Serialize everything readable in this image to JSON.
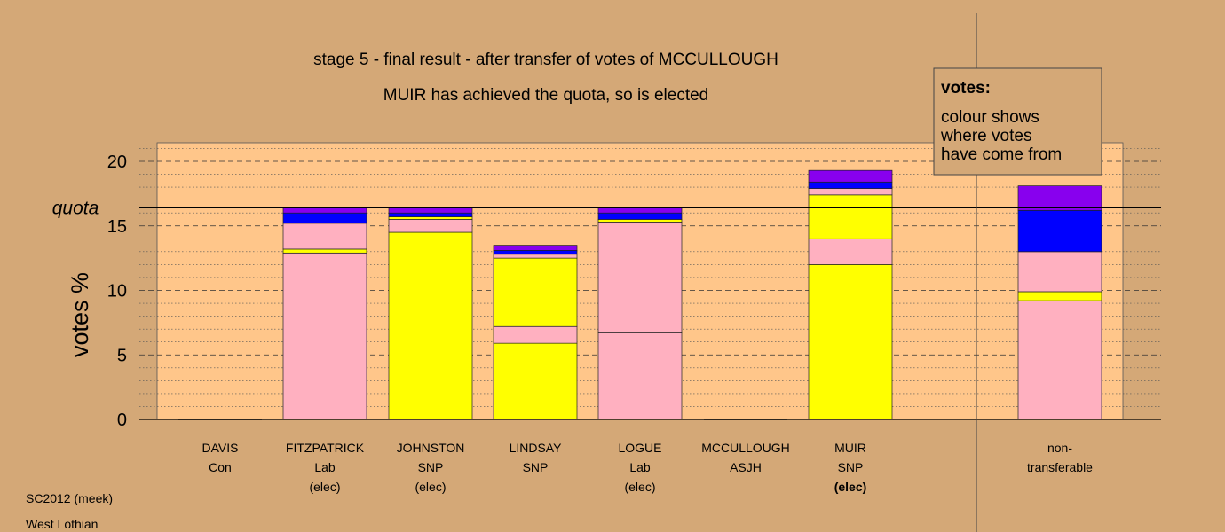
{
  "chart_data": {
    "type": "bar",
    "stacked": true,
    "title": "stage 5 - final result - after transfer of votes of MCCULLOUGH",
    "subtitle": "MUIR has achieved the quota, so is elected",
    "ylabel": "votes %",
    "ylim": [
      0,
      21.5
    ],
    "yticks": [
      0,
      5,
      10,
      15,
      20
    ],
    "quota": 16.4,
    "quota_label": "quota",
    "colors": {
      "background": "#d4a877",
      "plot_area": "#ffc68a",
      "pink": "#ffb0c0",
      "yellow": "#ffff00",
      "blue": "#0000ff",
      "purple": "#8800ee"
    },
    "candidates": [
      {
        "name": "DAVIS",
        "party": "Con",
        "status": "",
        "status_bold": false,
        "segments": []
      },
      {
        "name": "FITZPATRICK",
        "party": "Lab",
        "status": "(elec)",
        "status_bold": false,
        "segments": [
          {
            "color": "pink",
            "value": 12.9
          },
          {
            "color": "yellow",
            "value": 0.3
          },
          {
            "color": "pink",
            "value": 2.0
          },
          {
            "color": "blue",
            "value": 0.8
          },
          {
            "color": "purple",
            "value": 0.4
          }
        ]
      },
      {
        "name": "JOHNSTON",
        "party": "SNP",
        "status": "(elec)",
        "status_bold": false,
        "segments": [
          {
            "color": "yellow",
            "value": 14.5
          },
          {
            "color": "pink",
            "value": 1.0
          },
          {
            "color": "yellow",
            "value": 0.2
          },
          {
            "color": "blue",
            "value": 0.3
          },
          {
            "color": "purple",
            "value": 0.4
          }
        ]
      },
      {
        "name": "LINDSAY",
        "party": "SNP",
        "status": "",
        "status_bold": false,
        "segments": [
          {
            "color": "yellow",
            "value": 5.9
          },
          {
            "color": "pink",
            "value": 1.3
          },
          {
            "color": "yellow",
            "value": 5.3
          },
          {
            "color": "pink",
            "value": 0.3
          },
          {
            "color": "blue",
            "value": 0.3
          },
          {
            "color": "purple",
            "value": 0.4
          }
        ]
      },
      {
        "name": "LOGUE",
        "party": "Lab",
        "status": "(elec)",
        "status_bold": false,
        "segments": [
          {
            "color": "pink",
            "value": 6.7
          },
          {
            "color": "pink",
            "value": 8.6
          },
          {
            "color": "yellow",
            "value": 0.2
          },
          {
            "color": "blue",
            "value": 0.5
          },
          {
            "color": "purple",
            "value": 0.4
          }
        ]
      },
      {
        "name": "MCCULLOUGH",
        "party": "ASJH",
        "status": "",
        "status_bold": false,
        "segments": []
      },
      {
        "name": "MUIR",
        "party": "SNP",
        "status": "(elec)",
        "status_bold": true,
        "segments": [
          {
            "color": "yellow",
            "value": 12.0
          },
          {
            "color": "pink",
            "value": 2.0
          },
          {
            "color": "yellow",
            "value": 3.4
          },
          {
            "color": "pink",
            "value": 0.5
          },
          {
            "color": "blue",
            "value": 0.5
          },
          {
            "color": "purple",
            "value": 0.9
          }
        ]
      }
    ],
    "nontransferable": {
      "label_line1": "non-",
      "label_line2": "transferable",
      "segments": [
        {
          "color": "pink",
          "value": 9.2
        },
        {
          "color": "yellow",
          "value": 0.7
        },
        {
          "color": "pink",
          "value": 3.1
        },
        {
          "color": "blue",
          "value": 3.2
        },
        {
          "color": "purple",
          "value": 1.9
        }
      ]
    },
    "legend": {
      "title": "votes:",
      "lines": [
        "colour shows",
        "where votes",
        "have come from"
      ],
      "placement": "top-right"
    }
  },
  "footer": {
    "election": "SC2012 (meek)",
    "ward": "West Lothian"
  }
}
